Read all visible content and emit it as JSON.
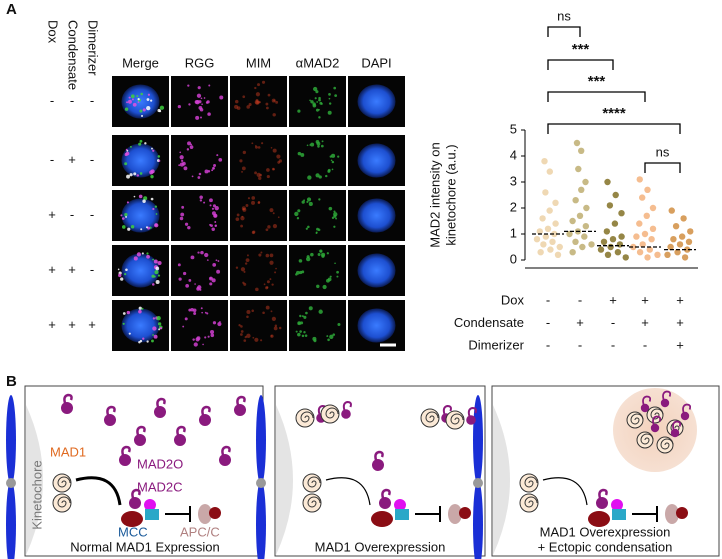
{
  "panel_a": {
    "label": "A",
    "conditions": [
      "Dox",
      "Condensate",
      "Dimerizer"
    ],
    "channels": [
      "Merge",
      "RGG",
      "MIM",
      "αMAD2",
      "DAPI"
    ],
    "rows": [
      [
        "-",
        "-",
        "-"
      ],
      [
        "-",
        "+",
        "-"
      ],
      [
        "+",
        "-",
        "-"
      ],
      [
        "+",
        "+",
        "-"
      ],
      [
        "+",
        "+",
        "+"
      ]
    ]
  },
  "chart_data": {
    "type": "strip",
    "ylabel": [
      "MAD2 intensity on",
      "kinetochore (a.u.)"
    ],
    "ylim": [
      0,
      5
    ],
    "yticks": [
      0,
      1,
      2,
      3,
      4,
      5
    ],
    "categories": [
      null,
      null,
      null,
      null,
      null
    ],
    "groups": [
      {
        "color": "#efd8b3",
        "mean": 1.0,
        "points": [
          3.8,
          3.4,
          2.6,
          2.2,
          1.9,
          1.6,
          1.4,
          1.2,
          1.1,
          1.0,
          0.9,
          0.8,
          0.7,
          0.6,
          0.5,
          0.4,
          0.3,
          0.2
        ]
      },
      {
        "color": "#c8ba86",
        "mean": 1.1,
        "points": [
          4.5,
          4.2,
          3.5,
          3.0,
          2.7,
          2.3,
          2.0,
          1.7,
          1.5,
          1.3,
          1.1,
          1.0,
          0.9,
          0.7,
          0.6,
          0.5,
          0.3
        ]
      },
      {
        "color": "#958646",
        "mean": 0.55,
        "points": [
          3.0,
          2.5,
          2.1,
          1.8,
          1.4,
          1.1,
          0.9,
          0.8,
          0.7,
          0.6,
          0.5,
          0.4,
          0.3,
          0.2,
          0.1
        ]
      },
      {
        "color": "#f5bd90",
        "mean": 0.5,
        "points": [
          3.1,
          2.7,
          2.4,
          2.0,
          1.7,
          1.4,
          1.2,
          1.0,
          0.9,
          0.8,
          0.6,
          0.5,
          0.4,
          0.3,
          0.2,
          0.1
        ]
      },
      {
        "color": "#d89f5e",
        "mean": 0.4,
        "points": [
          1.9,
          1.6,
          1.3,
          1.1,
          0.9,
          0.8,
          0.7,
          0.6,
          0.5,
          0.4,
          0.3,
          0.2,
          0.1
        ]
      }
    ],
    "significance": [
      "ns",
      "***",
      "***",
      "****",
      "ns"
    ],
    "condition_table": [
      {
        "name": "Dox",
        "signs": [
          "-",
          "-",
          "+",
          "+",
          "+"
        ]
      },
      {
        "name": "Condensate",
        "signs": [
          "-",
          "+",
          "-",
          "+",
          "+"
        ]
      },
      {
        "name": "Dimerizer",
        "signs": [
          "-",
          "-",
          "-",
          "-",
          "+"
        ]
      }
    ]
  },
  "panel_b": {
    "label": "B",
    "kinetochore": "Kinetochore",
    "mad1": "MAD1",
    "mad2o": "MAD2O",
    "mad2c": "MAD2C",
    "mcc": "MCC",
    "apcc": "APC/C",
    "captions": [
      [
        "Normal MAD1 Expression"
      ],
      [
        "MAD1 Overexpression"
      ],
      [
        "MAD1 Overexpression",
        "+ Ectopic condensation"
      ]
    ]
  }
}
